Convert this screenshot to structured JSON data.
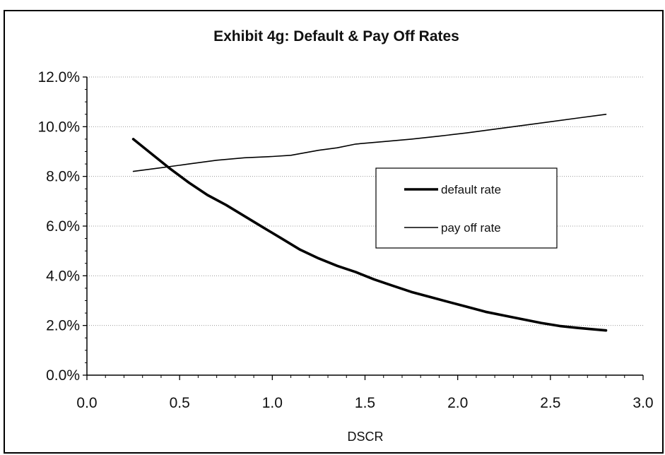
{
  "chart_data": {
    "type": "line",
    "title": "Exhibit 4g: Default & Pay Off Rates",
    "xlabel": "DSCR",
    "ylabel": "",
    "xlim": [
      0.0,
      3.0
    ],
    "ylim": [
      0.0,
      12.0
    ],
    "x_ticks": [
      0.0,
      0.5,
      1.0,
      1.5,
      2.0,
      2.5,
      3.0
    ],
    "x_tick_labels": [
      "0.0",
      "0.5",
      "1.0",
      "1.5",
      "2.0",
      "2.5",
      "3.0"
    ],
    "y_ticks": [
      0,
      2,
      4,
      6,
      8,
      10,
      12
    ],
    "y_tick_labels": [
      "0.0%",
      "2.0%",
      "4.0%",
      "6.0%",
      "8.0%",
      "10.0%",
      "12.0%"
    ],
    "grid": true,
    "legend_position": "center-right",
    "series": [
      {
        "name": "default rate",
        "style": "thick",
        "x": [
          0.25,
          0.35,
          0.45,
          0.55,
          0.65,
          0.75,
          0.85,
          0.95,
          1.05,
          1.15,
          1.25,
          1.35,
          1.45,
          1.55,
          1.65,
          1.75,
          1.85,
          1.95,
          2.05,
          2.15,
          2.25,
          2.35,
          2.45,
          2.55,
          2.65,
          2.8
        ],
        "values": [
          9.5,
          8.9,
          8.3,
          7.75,
          7.25,
          6.85,
          6.4,
          5.95,
          5.5,
          5.05,
          4.7,
          4.4,
          4.15,
          3.85,
          3.6,
          3.35,
          3.15,
          2.95,
          2.75,
          2.55,
          2.4,
          2.25,
          2.1,
          1.98,
          1.9,
          1.8
        ]
      },
      {
        "name": "pay off rate",
        "style": "thin",
        "x": [
          0.25,
          0.4,
          0.55,
          0.7,
          0.85,
          1.0,
          1.1,
          1.25,
          1.35,
          1.45,
          1.6,
          1.75,
          1.9,
          2.05,
          2.2,
          2.35,
          2.5,
          2.65,
          2.8
        ],
        "values": [
          8.2,
          8.35,
          8.5,
          8.65,
          8.75,
          8.8,
          8.85,
          9.05,
          9.15,
          9.3,
          9.4,
          9.5,
          9.62,
          9.75,
          9.9,
          10.05,
          10.2,
          10.35,
          10.5
        ]
      }
    ]
  }
}
